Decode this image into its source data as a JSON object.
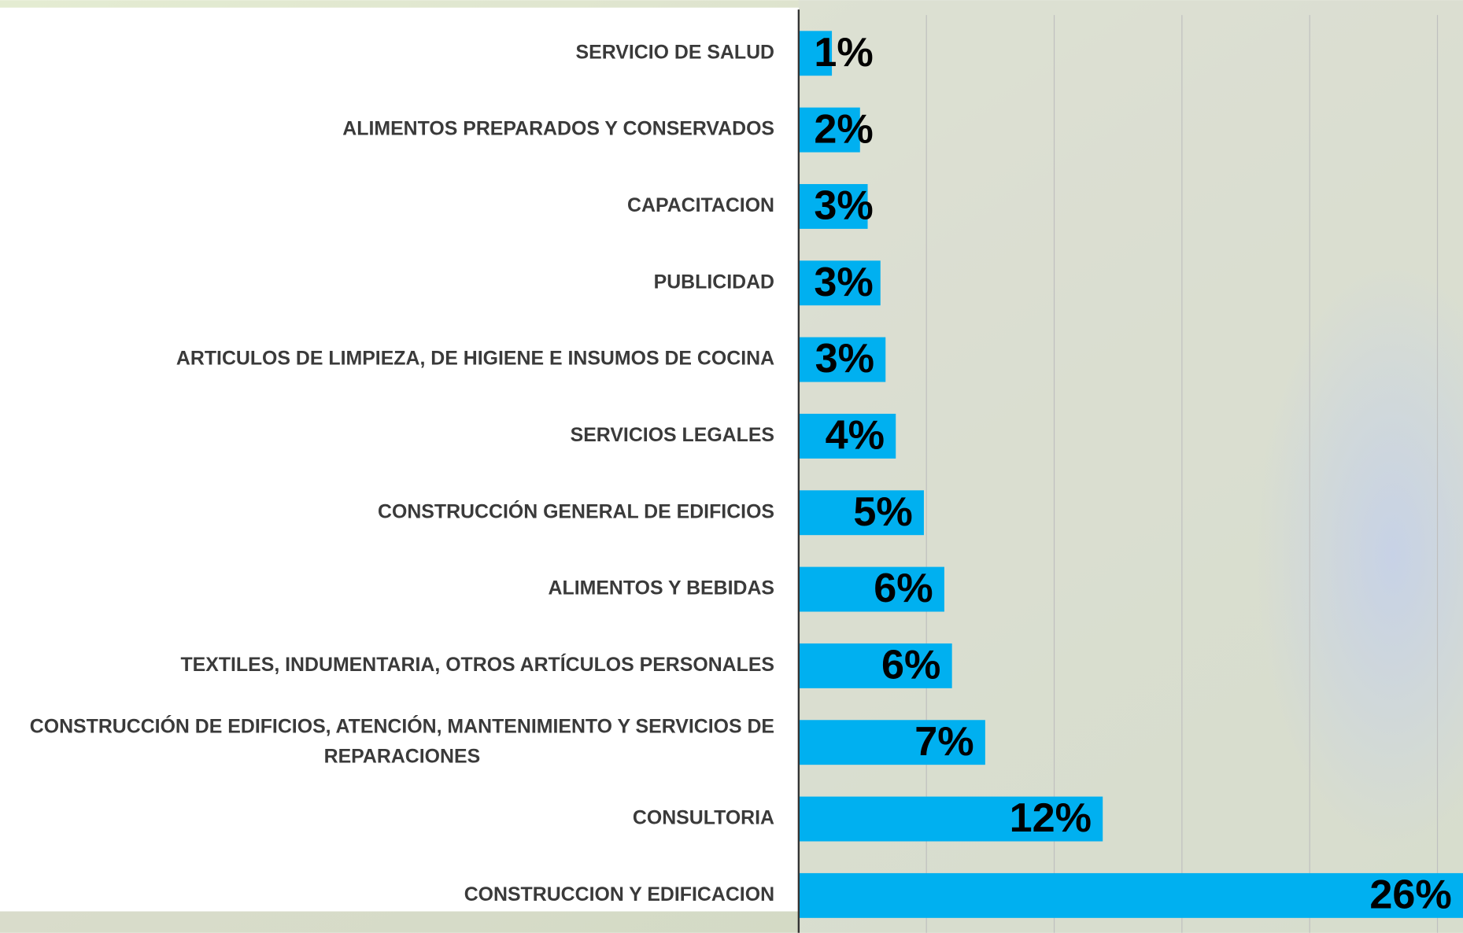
{
  "chart_data": {
    "type": "bar",
    "orientation": "horizontal",
    "categories": [
      "SERVICIO DE SALUD",
      "ALIMENTOS PREPARADOS Y CONSERVADOS",
      "CAPACITACION",
      "PUBLICIDAD",
      "ARTICULOS DE LIMPIEZA, DE HIGIENE E INSUMOS DE COCINA",
      "SERVICIOS LEGALES",
      "CONSTRUCCIÓN GENERAL DE EDIFICIOS",
      "ALIMENTOS Y BEBIDAS",
      "TEXTILES, INDUMENTARIA, OTROS ARTÍCULOS PERSONALES",
      "CONSTRUCCIÓN DE EDIFICIOS, ATENCIÓN, MANTENIMIENTO Y SERVICIOS DE REPARACIONES",
      "CONSULTORIA",
      "CONSTRUCCION Y EDIFICACION"
    ],
    "values": [
      1.3,
      2.4,
      2.7,
      3.2,
      3.4,
      3.8,
      4.9,
      5.7,
      6.0,
      7.3,
      11.9,
      26
    ],
    "value_labels": [
      "1%",
      "2%",
      "3%",
      "3%",
      "3%",
      "4%",
      "5%",
      "6%",
      "6%",
      "7%",
      "12%",
      "26%"
    ],
    "color": "#00b0f0",
    "xlim": [
      0,
      26
    ],
    "xticks": [
      5,
      10,
      15,
      20,
      25
    ],
    "grid": true
  }
}
